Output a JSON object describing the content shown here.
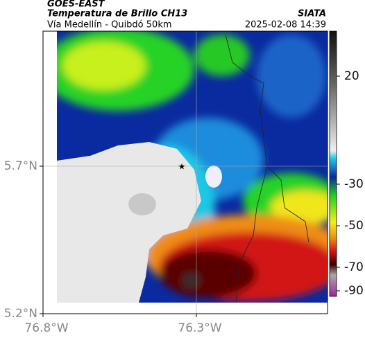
{
  "header": {
    "source": "GOES-EAST",
    "product": "Temperatura de Brillo CH13",
    "agency": "SIATA",
    "region": "Vía Medellín - Quibdó 50km",
    "datetime": "2025-02-08 14:39"
  },
  "map": {
    "xticks": [
      {
        "value": -76.8,
        "label": "76.8°W"
      },
      {
        "value": -76.3,
        "label": "76.3°W"
      }
    ],
    "yticks": [
      {
        "value": 5.2,
        "label": "5.2°N"
      },
      {
        "value": 5.7,
        "label": "5.7°N"
      }
    ]
  },
  "colorbar": {
    "ticks": [
      20,
      -30,
      -50,
      -70,
      -90
    ]
  }
}
